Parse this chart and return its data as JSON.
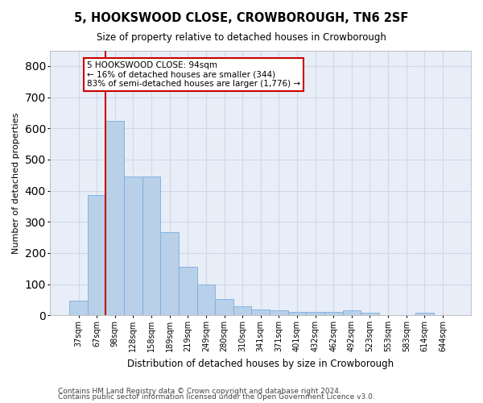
{
  "title": "5, HOOKSWOOD CLOSE, CROWBOROUGH, TN6 2SF",
  "subtitle": "Size of property relative to detached houses in Crowborough",
  "xlabel": "Distribution of detached houses by size in Crowborough",
  "ylabel": "Number of detached properties",
  "categories": [
    "37sqm",
    "67sqm",
    "98sqm",
    "128sqm",
    "158sqm",
    "189sqm",
    "219sqm",
    "249sqm",
    "280sqm",
    "310sqm",
    "341sqm",
    "371sqm",
    "401sqm",
    "432sqm",
    "462sqm",
    "492sqm",
    "523sqm",
    "553sqm",
    "583sqm",
    "614sqm",
    "644sqm"
  ],
  "values": [
    47,
    385,
    625,
    445,
    445,
    268,
    155,
    98,
    52,
    30,
    18,
    17,
    12,
    12,
    12,
    15,
    8,
    0,
    0,
    8,
    0
  ],
  "bar_color": "#b8d0e8",
  "bar_edge_color": "#7aade0",
  "bg_color": "#e8eef8",
  "grid_color": "#d0d8e8",
  "vline_color": "#cc0000",
  "vline_x_idx": 1.5,
  "annotation_text": "5 HOOKSWOOD CLOSE: 94sqm\n← 16% of detached houses are smaller (344)\n83% of semi-detached houses are larger (1,776) →",
  "ann_box_fc": "#ffffff",
  "ann_box_ec": "#cc0000",
  "ylim": [
    0,
    850
  ],
  "yticks": [
    0,
    100,
    200,
    300,
    400,
    500,
    600,
    700,
    800
  ],
  "fig_width": 6.0,
  "fig_height": 5.0,
  "dpi": 100,
  "footer1": "Contains HM Land Registry data © Crown copyright and database right 2024.",
  "footer2": "Contains public sector information licensed under the Open Government Licence v3.0."
}
